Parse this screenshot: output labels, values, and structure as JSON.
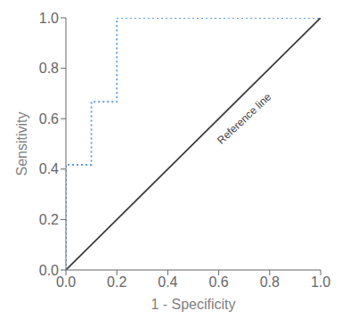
{
  "chart_data": {
    "type": "line",
    "x_label": "1 - Specificity",
    "y_label": "Sensitivity",
    "series": [
      {
        "color": "#3c3c3c",
        "line_style": "solid",
        "x": [
          0.0,
          1.0
        ],
        "values": [
          0.0,
          1.0
        ]
      },
      {
        "color": "#5b9bd5",
        "line_style": "dotted",
        "x": [
          0.0,
          0.0,
          0.1,
          0.1,
          0.2,
          0.2,
          1.0
        ],
        "values": [
          0.0,
          0.417,
          0.417,
          0.667,
          0.667,
          1.0,
          1.0
        ]
      }
    ],
    "annotations": [
      {
        "text": "Reference line",
        "x": 0.7,
        "y": 0.6,
        "color": "#3c3c3c"
      }
    ],
    "xlim": [
      0.0,
      1.0
    ],
    "ylim": [
      0.0,
      1.0
    ],
    "xticks": [
      {
        "value": 0.0,
        "label": "0.0"
      },
      {
        "value": 0.2,
        "label": "0.2"
      },
      {
        "value": 0.4,
        "label": "0.4"
      },
      {
        "value": 0.6,
        "label": "0.6"
      },
      {
        "value": 0.8,
        "label": "0.8"
      },
      {
        "value": 1.0,
        "label": "1.0"
      }
    ],
    "yticks": [
      {
        "value": 0.0,
        "label": "0.0"
      },
      {
        "value": 0.2,
        "label": "0.2"
      },
      {
        "value": 0.4,
        "label": "0.4"
      },
      {
        "value": 0.6,
        "label": "0.6"
      },
      {
        "value": 0.8,
        "label": "0.8"
      },
      {
        "value": 1.0,
        "label": "1.0"
      }
    ],
    "grid": false
  }
}
